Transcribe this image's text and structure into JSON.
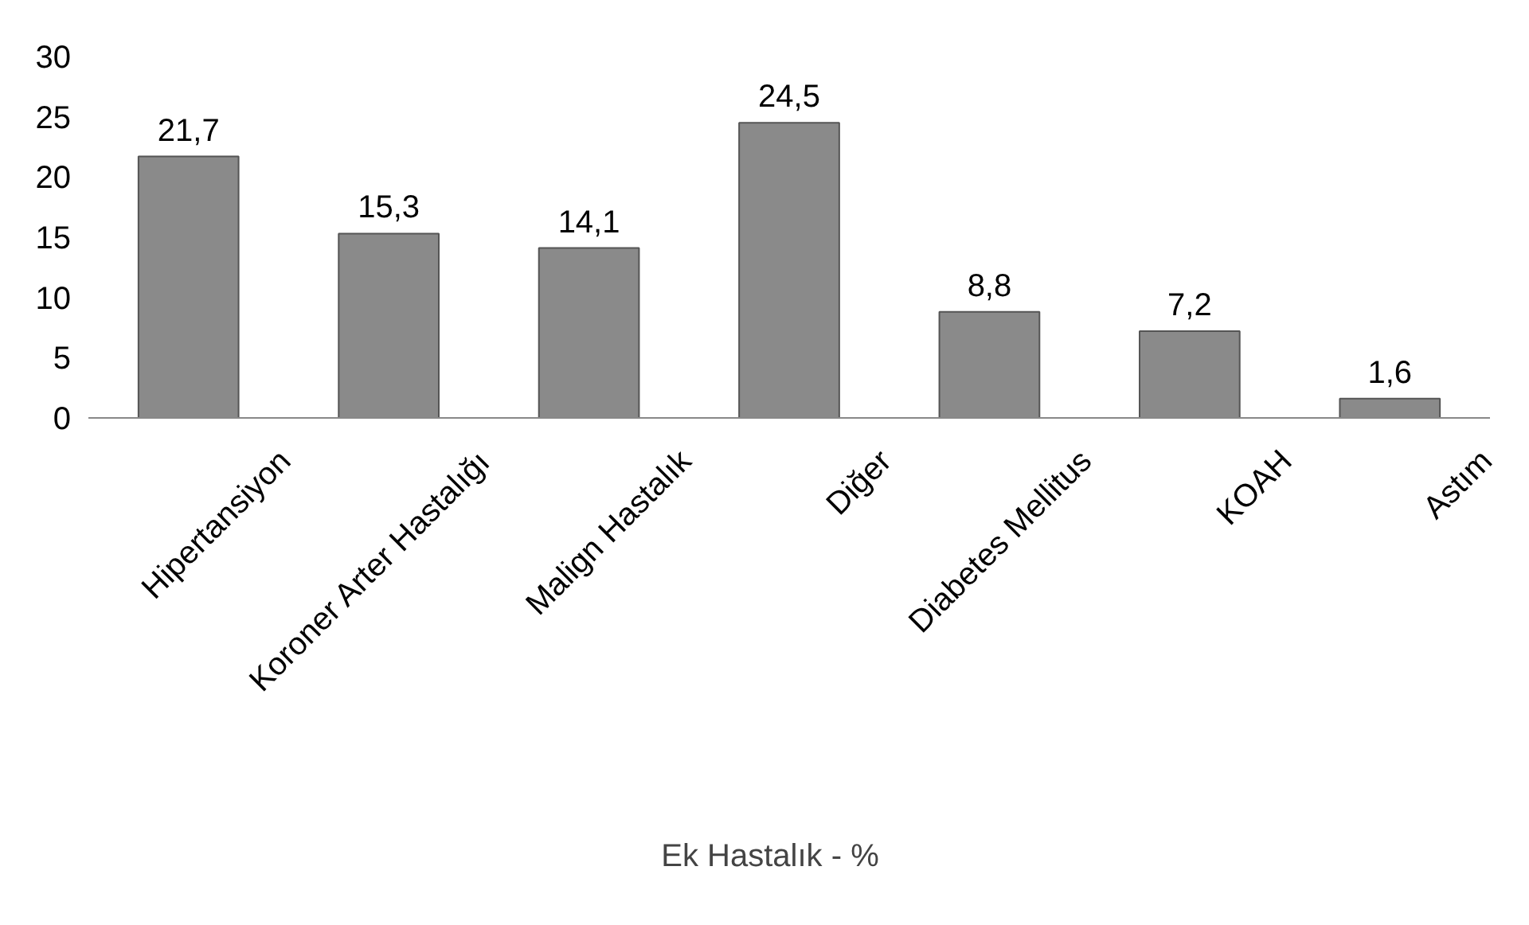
{
  "chart_data": {
    "type": "bar",
    "categories": [
      "Hipertansiyon",
      "Koroner Arter Hastalığı",
      "Malign Hastalık",
      "Diğer",
      "Diabetes Mellitus",
      "KOAH",
      "Astım"
    ],
    "series": [
      {
        "name": "Ek Hastalık - %",
        "color": "#8a8a8a",
        "values": [
          21.7,
          15.3,
          14.1,
          24.5,
          8.8,
          7.2,
          1.6
        ],
        "value_labels": [
          "21,7",
          "15,3",
          "14,1",
          "24,5",
          "8,8",
          "7,2",
          "1,6"
        ]
      }
    ],
    "ylim": [
      0,
      30
    ],
    "yticks": [
      0,
      5,
      10,
      15,
      20,
      25,
      30
    ],
    "legend": "bottom"
  }
}
